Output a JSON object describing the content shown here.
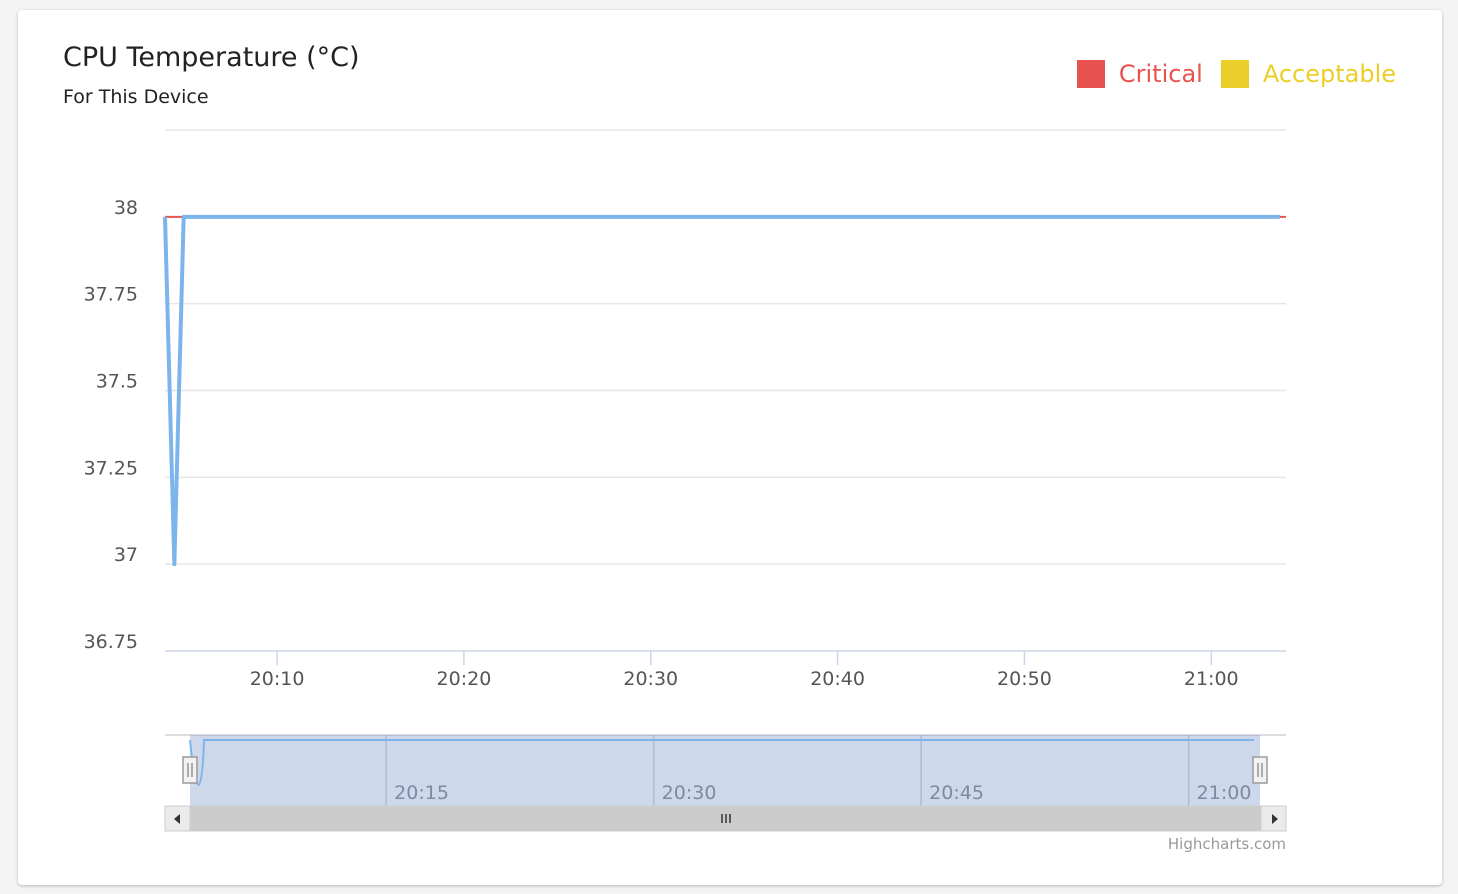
{
  "chart_data": {
    "type": "line",
    "title": "CPU Temperature (°C)",
    "subtitle": "For This Device",
    "legend": {
      "placement": "top-right",
      "items": [
        {
          "label": "Critical",
          "color": "#e9534f"
        },
        {
          "label": "Acceptable",
          "color": "#ecce2a"
        }
      ]
    },
    "xlim": [
      "20:04:00",
      "21:04:00"
    ],
    "ylim": [
      36.75,
      38.25
    ],
    "yticks": [
      "36.75",
      "37",
      "37.25",
      "37.5",
      "37.75",
      "38"
    ],
    "xticks": [
      "20:10",
      "20:20",
      "20:30",
      "20:40",
      "20:50",
      "21:00"
    ],
    "grid": true,
    "critical_line": 38,
    "series": [
      {
        "color": "#7cb5ec",
        "points": [
          [
            "20:04:00",
            38
          ],
          [
            "20:04:30",
            37
          ],
          [
            "20:05:00",
            38
          ],
          [
            "21:03:40",
            38
          ]
        ]
      }
    ],
    "navigator": {
      "xticks": [
        "20:15",
        "20:30",
        "20:45",
        "21:00"
      ],
      "xlim": [
        "20:04:00",
        "21:04:00"
      ]
    },
    "credits": "Highcharts.com"
  }
}
